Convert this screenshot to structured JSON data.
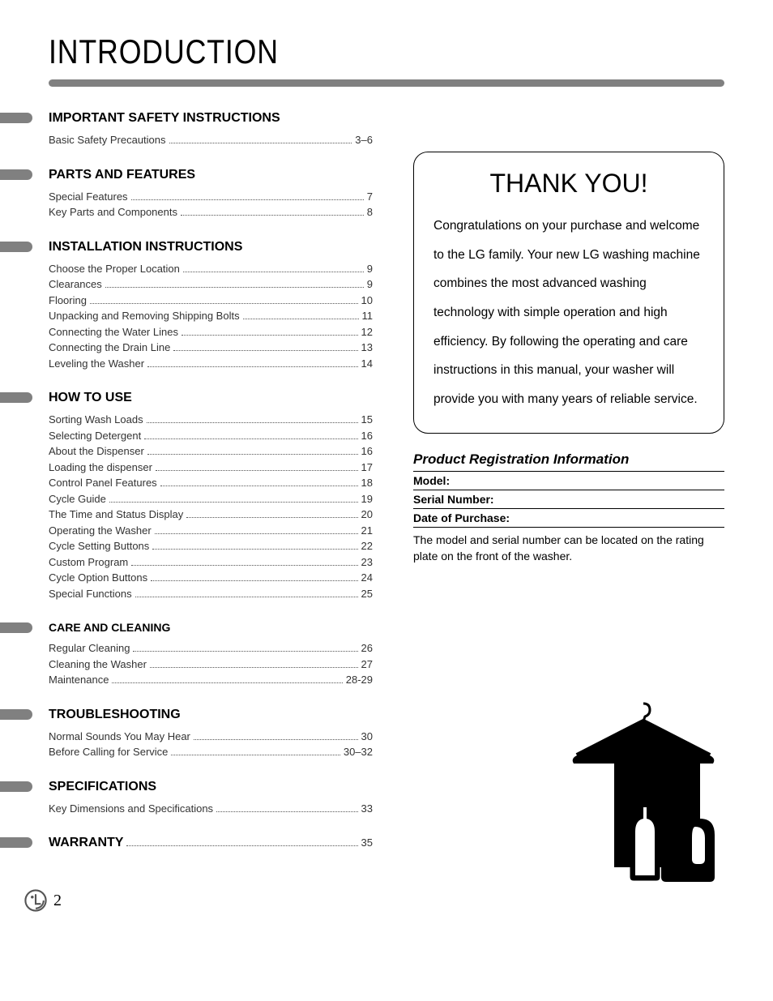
{
  "page_title": "INTRODUCTION",
  "sections": [
    {
      "heading": "IMPORTANT SAFETY INSTRUCTIONS",
      "entries": [
        {
          "label": "Basic Safety Precautions",
          "page": "3–6"
        }
      ]
    },
    {
      "heading": "PARTS AND FEATURES",
      "entries": [
        {
          "label": "Special Features",
          "page": "7"
        },
        {
          "label": "Key Parts and Components",
          "page": "8"
        }
      ]
    },
    {
      "heading": "INSTALLATION INSTRUCTIONS",
      "entries": [
        {
          "label": "Choose the Proper Location",
          "page": "9"
        },
        {
          "label": "Clearances",
          "page": "9"
        },
        {
          "label": "Flooring",
          "page": "10"
        },
        {
          "label": "Unpacking and Removing Shipping Bolts",
          "page": "11"
        },
        {
          "label": "Connecting the Water Lines",
          "page": "12"
        },
        {
          "label": "Connecting the Drain Line",
          "page": "13"
        },
        {
          "label": "Leveling the Washer",
          "page": "14"
        }
      ]
    },
    {
      "heading": "HOW TO USE",
      "entries": [
        {
          "label": "Sorting Wash Loads",
          "page": "15"
        },
        {
          "label": "Selecting Detergent",
          "page": "16"
        },
        {
          "label": "About the Dispenser",
          "page": "16"
        },
        {
          "label": "Loading the dispenser",
          "page": "17"
        },
        {
          "label": "Control Panel Features",
          "page": "18"
        },
        {
          "label": "Cycle Guide",
          "page": "19"
        },
        {
          "label": "The Time and Status Display",
          "page": "20"
        },
        {
          "label": "Operating the Washer",
          "page": "21"
        },
        {
          "label": "Cycle Setting Buttons",
          "page": "22"
        },
        {
          "label": "Custom Program",
          "page": "23"
        },
        {
          "label": "Cycle Option Buttons",
          "page": "24"
        },
        {
          "label": "Special Functions",
          "page": "25"
        }
      ]
    },
    {
      "heading": "CARE AND CLEANING",
      "heading_class": "care",
      "entries": [
        {
          "label": "Regular Cleaning",
          "page": "26"
        },
        {
          "label": "Cleaning the Washer",
          "page": "27"
        },
        {
          "label": "Maintenance",
          "page": "28-29"
        }
      ]
    },
    {
      "heading": "TROUBLESHOOTING",
      "entries": [
        {
          "label": "Normal Sounds You May Hear",
          "page": "30"
        },
        {
          "label": "Before Calling for Service",
          "page": "30–32"
        }
      ]
    },
    {
      "heading": "SPECIFICATIONS",
      "entries": [
        {
          "label": "Key Dimensions and Specifications",
          "page": "33"
        }
      ]
    }
  ],
  "warranty": {
    "label": "WARRANTY",
    "page": "35"
  },
  "thank_you": {
    "title": "THANK YOU!",
    "body": "Congratulations on your purchase and welcome to the LG family. Your new LG washing machine combines the most advanced washing technology with simple operation and high efficiency. By following the operating and care instructions in this manual, your washer will provide you with many years of reliable service."
  },
  "registration": {
    "heading": "Product Registration Information",
    "fields": [
      "Model:",
      "Serial Number:",
      "Date of Purchase:"
    ],
    "note": "The model and serial number can be located on the rating plate on the front of the washer."
  },
  "page_number": "2",
  "colors": {
    "bar": "#808080",
    "text": "#000000",
    "toc_text": "#333333"
  }
}
